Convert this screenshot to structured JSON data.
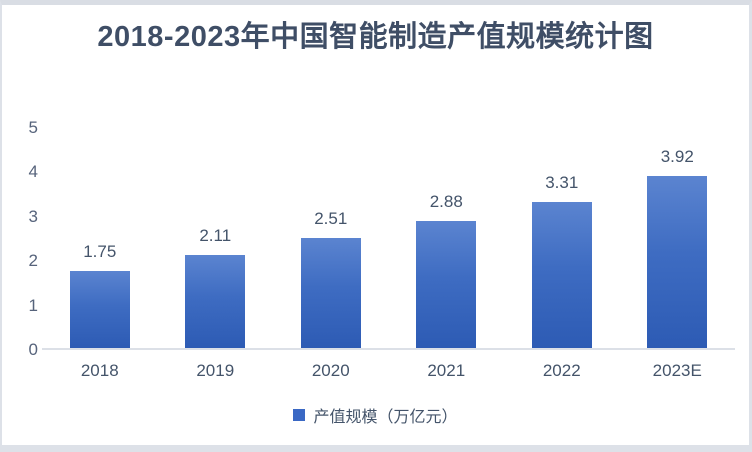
{
  "chart_data": {
    "type": "bar",
    "title": "2018-2023年中国智能制造产值规模统计图",
    "categories": [
      "2018",
      "2019",
      "2020",
      "2021",
      "2022",
      "2023E"
    ],
    "values": [
      1.75,
      2.11,
      2.51,
      2.88,
      3.31,
      3.92
    ],
    "value_labels": [
      "1.75",
      "2.11",
      "2.51",
      "2.88",
      "3.31",
      "3.92"
    ],
    "series_name": "产值规模（万亿元）",
    "xlabel": "",
    "ylabel": "",
    "ylim": [
      0,
      5
    ],
    "yticks": [
      0,
      1,
      2,
      3,
      4,
      5
    ],
    "grid": false,
    "legend_position": "bottom",
    "colors": {
      "bar_gradient_top": "#5b84d0",
      "bar_gradient_bottom": "#2d5bb4",
      "legend_marker": "#3a68c4",
      "title_text": "#3f4e66",
      "label_text": "#44546a",
      "tick_text": "#56637b",
      "axis_line": "#dce0e7",
      "frame_border": "#dde1e8"
    }
  },
  "legend": {
    "label": "产值规模（万亿元）"
  }
}
